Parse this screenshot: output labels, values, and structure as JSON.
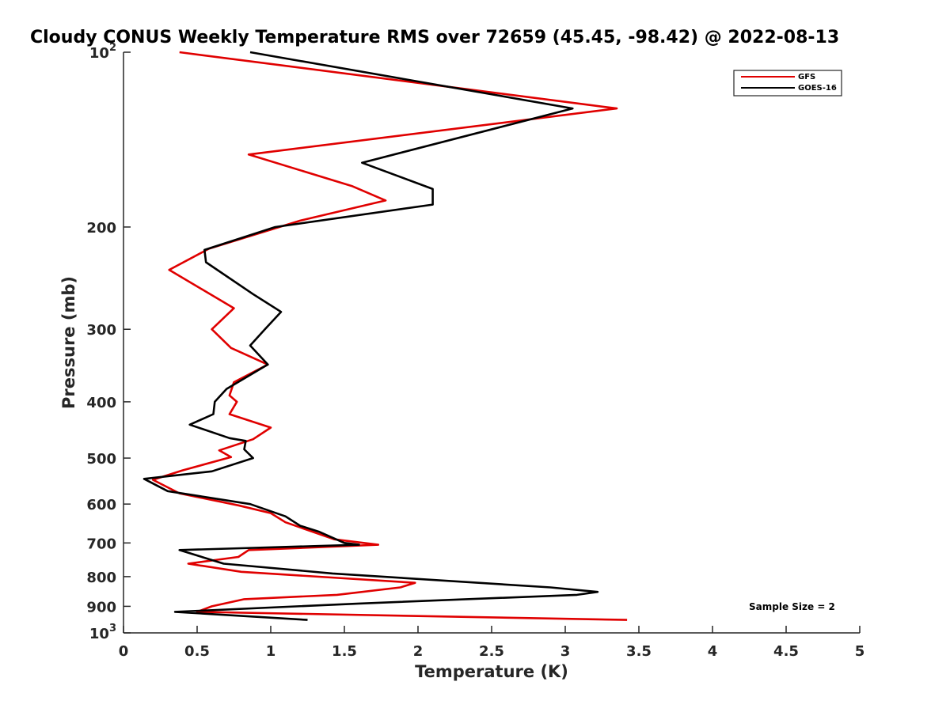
{
  "chart_data": {
    "type": "line",
    "title": "Cloudy CONUS Weekly Temperature RMS over 72659 (45.45, -98.42) @ 2022-08-13",
    "xlabel": "Temperature (K)",
    "ylabel": "Pressure (mb)",
    "xlim": [
      0,
      5
    ],
    "ylim": [
      100,
      1000
    ],
    "y_scale": "log",
    "y_reversed": true,
    "xticks": [
      0,
      0.5,
      1,
      1.5,
      2,
      2.5,
      3,
      3.5,
      4,
      4.5,
      5
    ],
    "xtick_labels": [
      "0",
      "0.5",
      "1",
      "1.5",
      "2",
      "2.5",
      "3",
      "3.5",
      "4",
      "4.5",
      "5"
    ],
    "yticks": [
      100,
      200,
      300,
      400,
      500,
      600,
      700,
      800,
      900,
      1000
    ],
    "ytick_labels": [
      {
        "base": "10",
        "exp": "2"
      },
      {
        "base": "200",
        "exp": ""
      },
      {
        "base": "300",
        "exp": ""
      },
      {
        "base": "400",
        "exp": ""
      },
      {
        "base": "500",
        "exp": ""
      },
      {
        "base": "600",
        "exp": ""
      },
      {
        "base": "700",
        "exp": ""
      },
      {
        "base": "800",
        "exp": ""
      },
      {
        "base": "900",
        "exp": ""
      },
      {
        "base": "10",
        "exp": "3"
      }
    ],
    "grid": false,
    "legend_position": "top-right",
    "annotation": "Sample Size = 2",
    "series": [
      {
        "name": "GFS",
        "color": "#e00000",
        "points": [
          [
            0.38,
            100
          ],
          [
            3.35,
            125
          ],
          [
            0.85,
            150
          ],
          [
            1.55,
            170
          ],
          [
            1.78,
            180
          ],
          [
            1.2,
            195
          ],
          [
            0.58,
            218
          ],
          [
            0.31,
            237
          ],
          [
            0.75,
            276
          ],
          [
            0.6,
            300
          ],
          [
            0.73,
            323
          ],
          [
            0.98,
            345
          ],
          [
            0.75,
            370
          ],
          [
            0.72,
            390
          ],
          [
            0.77,
            400
          ],
          [
            0.72,
            420
          ],
          [
            1.0,
            443
          ],
          [
            0.88,
            464
          ],
          [
            0.65,
            485
          ],
          [
            0.73,
            498
          ],
          [
            0.4,
            525
          ],
          [
            0.2,
            545
          ],
          [
            0.38,
            575
          ],
          [
            0.78,
            603
          ],
          [
            1.0,
            622
          ],
          [
            1.1,
            645
          ],
          [
            1.28,
            669
          ],
          [
            1.43,
            690
          ],
          [
            1.73,
            705
          ],
          [
            0.85,
            720
          ],
          [
            0.78,
            740
          ],
          [
            0.44,
            760
          ],
          [
            0.8,
            785
          ],
          [
            1.98,
            820
          ],
          [
            1.88,
            835
          ],
          [
            1.45,
            860
          ],
          [
            0.82,
            875
          ],
          [
            0.6,
            900
          ],
          [
            0.5,
            920
          ],
          [
            3.42,
            950
          ]
        ]
      },
      {
        "name": "GOES-16",
        "color": "#000000",
        "points": [
          [
            0.86,
            100
          ],
          [
            3.05,
            125
          ],
          [
            1.62,
            155
          ],
          [
            2.1,
            172
          ],
          [
            2.1,
            183
          ],
          [
            1.03,
            200
          ],
          [
            0.55,
            219
          ],
          [
            0.56,
            230
          ],
          [
            0.88,
            261
          ],
          [
            1.07,
            280
          ],
          [
            0.96,
            300
          ],
          [
            0.86,
            320
          ],
          [
            0.98,
            345
          ],
          [
            0.7,
            380
          ],
          [
            0.62,
            400
          ],
          [
            0.61,
            420
          ],
          [
            0.45,
            438
          ],
          [
            0.72,
            462
          ],
          [
            0.83,
            467
          ],
          [
            0.82,
            483
          ],
          [
            0.88,
            500
          ],
          [
            0.6,
            527
          ],
          [
            0.14,
            543
          ],
          [
            0.3,
            570
          ],
          [
            0.86,
            600
          ],
          [
            1.1,
            630
          ],
          [
            1.2,
            654
          ],
          [
            1.33,
            670
          ],
          [
            1.5,
            700
          ],
          [
            1.6,
            705
          ],
          [
            0.38,
            720
          ],
          [
            0.68,
            760
          ],
          [
            1.42,
            790
          ],
          [
            2.9,
            835
          ],
          [
            3.22,
            850
          ],
          [
            3.08,
            860
          ],
          [
            1.6,
            890
          ],
          [
            0.35,
            920
          ],
          [
            1.25,
            950
          ]
        ]
      }
    ]
  }
}
